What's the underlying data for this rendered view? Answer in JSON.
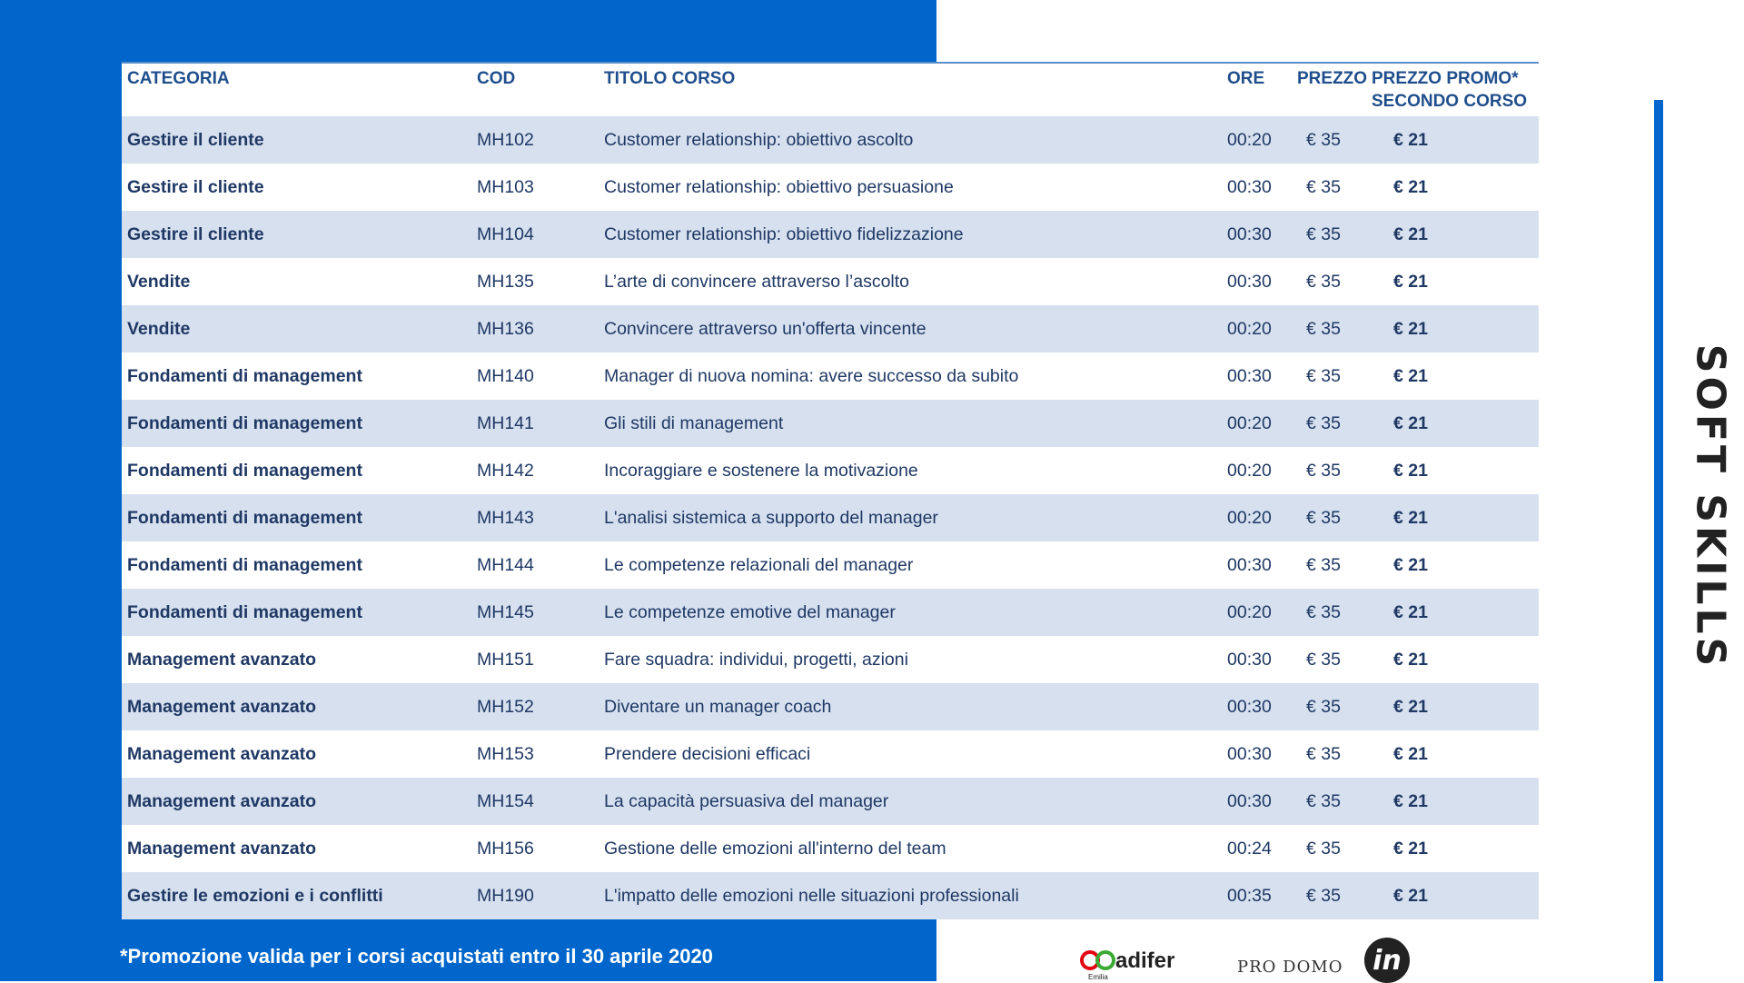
{
  "side_title": "SOFT SKILLS",
  "table": {
    "headers": {
      "category": "CATEGORIA",
      "code": "COD",
      "title": "TITOLO CORSO",
      "hours": "ORE",
      "price": "PREZZO",
      "promo_line1": "PREZZO PROMO*",
      "promo_line2": "SECONDO CORSO"
    },
    "rows": [
      {
        "category": "Gestire il cliente",
        "code": "MH102",
        "title": "Customer relationship: obiettivo ascolto",
        "hours": "00:20",
        "price": "€ 35",
        "promo": "€ 21"
      },
      {
        "category": "Gestire il cliente",
        "code": "MH103",
        "title": "Customer relationship: obiettivo persuasione",
        "hours": "00:30",
        "price": "€ 35",
        "promo": "€ 21"
      },
      {
        "category": "Gestire il cliente",
        "code": "MH104",
        "title": "Customer relationship: obiettivo fidelizzazione",
        "hours": "00:30",
        "price": "€ 35",
        "promo": "€ 21"
      },
      {
        "category": "Vendite",
        "code": "MH135",
        "title": "L’arte di convincere attraverso l’ascolto",
        "hours": "00:30",
        "price": "€ 35",
        "promo": "€ 21"
      },
      {
        "category": "Vendite",
        "code": "MH136",
        "title": "Convincere attraverso un'offerta vincente",
        "hours": "00:20",
        "price": "€ 35",
        "promo": "€ 21"
      },
      {
        "category": "Fondamenti di management",
        "code": "MH140",
        "title": "Manager di nuova nomina: avere successo da subito",
        "hours": "00:30",
        "price": "€ 35",
        "promo": "€ 21"
      },
      {
        "category": "Fondamenti di management",
        "code": "MH141",
        "title": "Gli stili di management",
        "hours": "00:20",
        "price": "€ 35",
        "promo": "€ 21"
      },
      {
        "category": "Fondamenti di management",
        "code": "MH142",
        "title": "Incoraggiare e sostenere la motivazione",
        "hours": "00:20",
        "price": "€ 35",
        "promo": "€ 21"
      },
      {
        "category": "Fondamenti di management",
        "code": "MH143",
        "title": "L'analisi sistemica a supporto del manager",
        "hours": "00:20",
        "price": "€ 35",
        "promo": "€ 21"
      },
      {
        "category": "Fondamenti di management",
        "code": "MH144",
        "title": "Le competenze relazionali del manager",
        "hours": "00:30",
        "price": "€ 35",
        "promo": "€ 21"
      },
      {
        "category": "Fondamenti di management",
        "code": "MH145",
        "title": "Le competenze emotive del manager",
        "hours": "00:20",
        "price": "€ 35",
        "promo": "€ 21"
      },
      {
        "category": "Management avanzato",
        "code": "MH151",
        "title": "Fare squadra: individui, progetti, azioni",
        "hours": "00:30",
        "price": "€ 35",
        "promo": "€ 21"
      },
      {
        "category": "Management avanzato",
        "code": "MH152",
        "title": "Diventare un manager coach",
        "hours": "00:30",
        "price": "€ 35",
        "promo": "€ 21"
      },
      {
        "category": "Management avanzato",
        "code": "MH153",
        "title": "Prendere decisioni efficaci",
        "hours": "00:30",
        "price": "€ 35",
        "promo": "€ 21"
      },
      {
        "category": "Management avanzato",
        "code": "MH154",
        "title": "La capacità persuasiva del manager",
        "hours": "00:30",
        "price": "€ 35",
        "promo": "€ 21"
      },
      {
        "category": "Management avanzato",
        "code": "MH156",
        "title": "Gestione delle emozioni all'interno del team",
        "hours": "00:24",
        "price": "€ 35",
        "promo": "€ 21"
      },
      {
        "category": "Gestire le emozioni e i conflitti",
        "code": "MH190",
        "title": "L'impatto delle emozioni nelle situazioni professionali",
        "hours": "00:35",
        "price": "€ 35",
        "promo": "€ 21"
      }
    ]
  },
  "footnote": "*Promozione valida per i corsi acquistati entro il 30 aprile 2020",
  "logos": {
    "adifer": "adifer",
    "adifer_region": "Emilia",
    "prodomo": "PRO DOMO",
    "in": "in"
  },
  "colors": {
    "brand_blue": "#0066cc",
    "row_shade": "#d6e0ef",
    "text_dark_blue": "#1f3864"
  }
}
